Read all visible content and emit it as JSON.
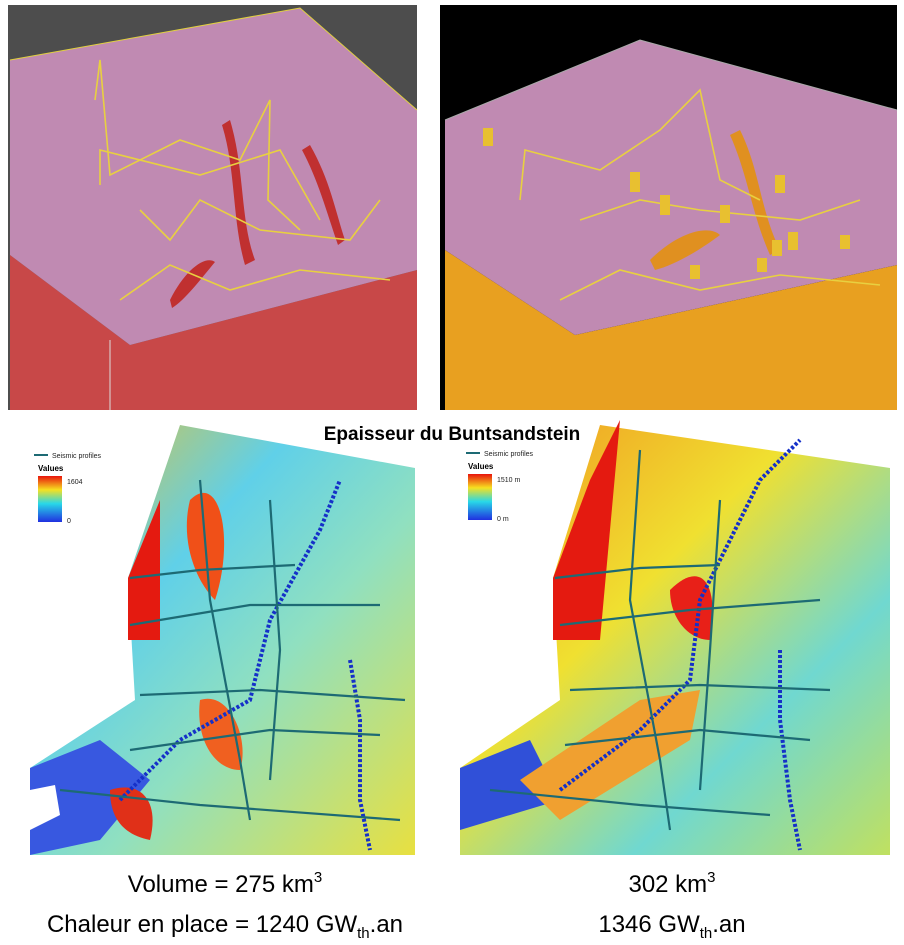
{
  "title": "Epaisseur du Buntsandstein",
  "maps": [
    {
      "legend": {
        "line": "Seismic profiles",
        "title": "Values",
        "max": "1604",
        "min": "0"
      },
      "volume": {
        "text": "Volume = 275 km",
        "sup": "3"
      },
      "heat": {
        "text": "Chaleur en place = 1240 GW",
        "sub": "th",
        "suffix": ".an"
      }
    },
    {
      "legend": {
        "line": "Seismic profiles",
        "title": "Values",
        "max": "1510 m",
        "min": "0 m"
      },
      "volume": {
        "text": "302 km",
        "sup": "3"
      },
      "heat": {
        "text": "1346 GW",
        "sub": "th",
        "suffix": ".an"
      }
    }
  ]
}
